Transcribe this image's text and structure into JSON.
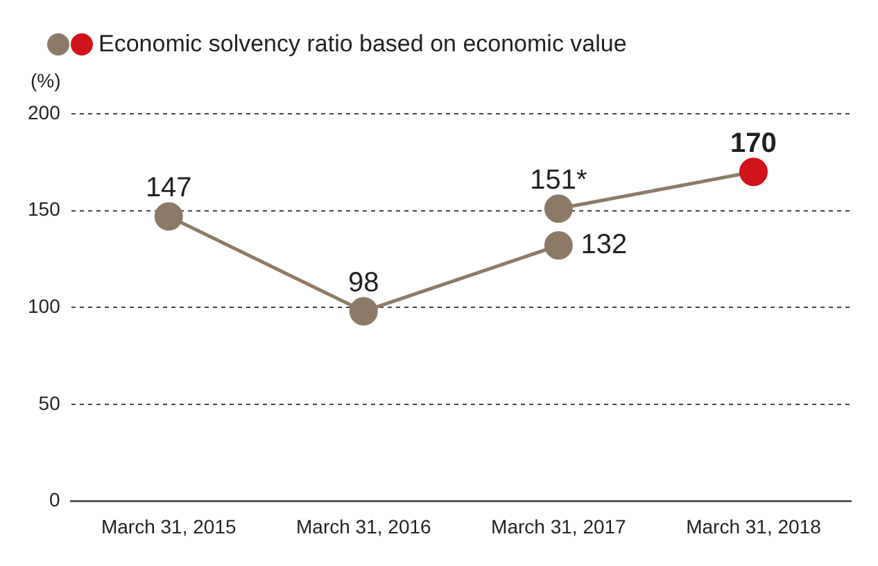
{
  "chart_data": {
    "type": "line",
    "ylabel": "(%)",
    "categories": [
      "March 31, 2015",
      "March 31, 2016",
      "March 31, 2017",
      "March 31, 2018"
    ],
    "series": [
      {
        "name": "Economic solvency ratio based on economic value",
        "color": "#8c7a67",
        "values": [
          147,
          98,
          132,
          null
        ],
        "value_labels": [
          "147",
          "98",
          "132",
          null
        ]
      },
      {
        "color": "#8c7a67",
        "colors": [
          "#8c7a67",
          "#8c7a67",
          "#8c7a67",
          "#d0121b"
        ],
        "values": [
          null,
          null,
          151,
          170
        ],
        "value_labels": [
          null,
          null,
          "151*",
          "170"
        ]
      }
    ],
    "ylim": [
      0,
      200
    ],
    "yticks": [
      0,
      50,
      100,
      150,
      200
    ],
    "grid": "y",
    "legend": "top left",
    "marker": "circle"
  }
}
